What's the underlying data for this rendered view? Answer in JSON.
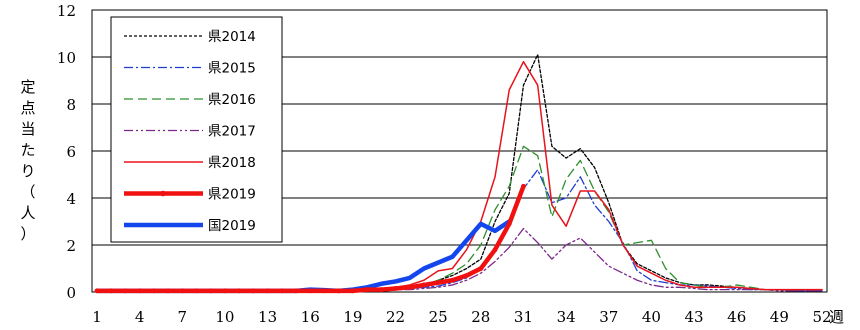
{
  "chart_data": {
    "type": "line",
    "ylabel": "定点当たり（人）",
    "xlabel": "",
    "x_unit": "週",
    "ylim": [
      0,
      12
    ],
    "yticks": [
      0,
      2,
      4,
      6,
      8,
      10,
      12
    ],
    "xticks": [
      1,
      4,
      7,
      10,
      13,
      16,
      19,
      22,
      25,
      28,
      31,
      34,
      37,
      40,
      43,
      46,
      49,
      52
    ],
    "xlim": [
      1,
      52
    ],
    "grid": "horizontal",
    "legend_position": "top-left",
    "series": [
      {
        "name": "県2014",
        "color": "#000000",
        "dash": "dotted",
        "width": 1.3,
        "x": [
          1,
          2,
          3,
          4,
          5,
          6,
          7,
          8,
          9,
          10,
          11,
          12,
          13,
          14,
          15,
          16,
          17,
          18,
          19,
          20,
          21,
          22,
          23,
          24,
          25,
          26,
          27,
          28,
          29,
          30,
          31,
          32,
          33,
          34,
          35,
          36,
          37,
          38,
          39,
          40,
          41,
          42,
          43,
          44,
          45,
          46,
          47,
          48,
          49,
          50,
          51,
          52
        ],
        "y": [
          0.05,
          0.05,
          0.05,
          0.05,
          0.05,
          0.05,
          0.05,
          0.05,
          0.05,
          0.05,
          0.05,
          0.05,
          0.05,
          0.05,
          0.05,
          0.05,
          0.05,
          0.05,
          0.05,
          0.1,
          0.1,
          0.15,
          0.2,
          0.3,
          0.5,
          0.7,
          1.0,
          1.4,
          3.0,
          4.2,
          8.8,
          10.1,
          6.2,
          5.7,
          6.1,
          5.3,
          3.8,
          2.0,
          1.2,
          0.9,
          0.6,
          0.4,
          0.3,
          0.3,
          0.25,
          0.2,
          0.15,
          0.1,
          0.1,
          0.1,
          0.1,
          0.1
        ]
      },
      {
        "name": "県2015",
        "color": "#1f3fd0",
        "dash": "dashdot",
        "width": 1.3,
        "x": [
          1,
          2,
          3,
          4,
          5,
          6,
          7,
          8,
          9,
          10,
          11,
          12,
          13,
          14,
          15,
          16,
          17,
          18,
          19,
          20,
          21,
          22,
          23,
          24,
          25,
          26,
          27,
          28,
          29,
          30,
          31,
          32,
          33,
          34,
          35,
          36,
          37,
          38,
          39,
          40,
          41,
          42,
          43,
          44,
          45,
          46,
          47,
          48,
          49,
          50,
          51,
          52
        ],
        "y": [
          0.05,
          0.05,
          0.05,
          0.05,
          0.05,
          0.05,
          0.05,
          0.05,
          0.05,
          0.05,
          0.05,
          0.05,
          0.05,
          0.05,
          0.05,
          0.05,
          0.05,
          0.05,
          0.05,
          0.05,
          0.05,
          0.1,
          0.15,
          0.2,
          0.25,
          0.4,
          0.6,
          1.0,
          1.8,
          3.0,
          4.4,
          5.2,
          3.8,
          4.0,
          4.9,
          3.7,
          3.0,
          2.1,
          0.9,
          0.5,
          0.4,
          0.3,
          0.3,
          0.25,
          0.2,
          0.15,
          0.1,
          0.1,
          0.1,
          0.05,
          0.05,
          0.05
        ]
      },
      {
        "name": "県2016",
        "color": "#2f8f2f",
        "dash": "dashed",
        "width": 1.3,
        "x": [
          1,
          2,
          3,
          4,
          5,
          6,
          7,
          8,
          9,
          10,
          11,
          12,
          13,
          14,
          15,
          16,
          17,
          18,
          19,
          20,
          21,
          22,
          23,
          24,
          25,
          26,
          27,
          28,
          29,
          30,
          31,
          32,
          33,
          34,
          35,
          36,
          37,
          38,
          39,
          40,
          41,
          42,
          43,
          44,
          45,
          46,
          47,
          48,
          49,
          50,
          51,
          52
        ],
        "y": [
          0.05,
          0.05,
          0.05,
          0.05,
          0.05,
          0.05,
          0.05,
          0.05,
          0.05,
          0.05,
          0.05,
          0.05,
          0.05,
          0.05,
          0.05,
          0.05,
          0.05,
          0.05,
          0.05,
          0.05,
          0.1,
          0.15,
          0.2,
          0.3,
          0.5,
          0.8,
          1.2,
          2.0,
          3.5,
          4.5,
          6.2,
          5.8,
          3.2,
          4.8,
          5.6,
          4.3,
          3.4,
          2.0,
          2.1,
          2.2,
          1.0,
          0.4,
          0.3,
          0.2,
          0.2,
          0.3,
          0.2,
          0.1,
          0.1,
          0.1,
          0.1,
          0.1
        ]
      },
      {
        "name": "県2017",
        "color": "#7a2a8a",
        "dash": "dashdotdot",
        "width": 1.3,
        "x": [
          1,
          2,
          3,
          4,
          5,
          6,
          7,
          8,
          9,
          10,
          11,
          12,
          13,
          14,
          15,
          16,
          17,
          18,
          19,
          20,
          21,
          22,
          23,
          24,
          25,
          26,
          27,
          28,
          29,
          30,
          31,
          32,
          33,
          34,
          35,
          36,
          37,
          38,
          39,
          40,
          41,
          42,
          43,
          44,
          45,
          46,
          47,
          48,
          49,
          50,
          51,
          52
        ],
        "y": [
          0.05,
          0.05,
          0.05,
          0.05,
          0.05,
          0.05,
          0.05,
          0.05,
          0.05,
          0.05,
          0.05,
          0.05,
          0.05,
          0.05,
          0.05,
          0.05,
          0.05,
          0.05,
          0.05,
          0.05,
          0.05,
          0.1,
          0.1,
          0.15,
          0.2,
          0.3,
          0.5,
          0.8,
          1.3,
          1.9,
          2.7,
          2.1,
          1.4,
          2.0,
          2.3,
          1.7,
          1.1,
          0.8,
          0.5,
          0.3,
          0.2,
          0.2,
          0.15,
          0.1,
          0.1,
          0.1,
          0.1,
          0.1,
          0.05,
          0.05,
          0.05,
          0.05
        ]
      },
      {
        "name": "県2018",
        "color": "#e8141c",
        "dash": "solid",
        "width": 1.5,
        "x": [
          1,
          2,
          3,
          4,
          5,
          6,
          7,
          8,
          9,
          10,
          11,
          12,
          13,
          14,
          15,
          16,
          17,
          18,
          19,
          20,
          21,
          22,
          23,
          24,
          25,
          26,
          27,
          28,
          29,
          30,
          31,
          32,
          33,
          34,
          35,
          36,
          37,
          38,
          39,
          40,
          41,
          42,
          43,
          44,
          45,
          46,
          47,
          48,
          49,
          50,
          51,
          52
        ],
        "y": [
          0.05,
          0.05,
          0.05,
          0.05,
          0.05,
          0.05,
          0.05,
          0.05,
          0.05,
          0.05,
          0.05,
          0.05,
          0.05,
          0.05,
          0.05,
          0.05,
          0.05,
          0.05,
          0.05,
          0.1,
          0.15,
          0.2,
          0.3,
          0.5,
          0.9,
          1.0,
          1.8,
          3.0,
          4.9,
          8.6,
          9.8,
          8.8,
          3.7,
          2.8,
          4.3,
          4.3,
          3.5,
          2.0,
          1.1,
          0.8,
          0.5,
          0.3,
          0.2,
          0.2,
          0.2,
          0.2,
          0.15,
          0.1,
          0.1,
          0.1,
          0.1,
          0.1
        ]
      },
      {
        "name": "県2019",
        "color": "#f01010",
        "dash": "solid",
        "width": 4.5,
        "markers": true,
        "x": [
          1,
          2,
          3,
          4,
          5,
          6,
          7,
          8,
          9,
          10,
          11,
          12,
          13,
          14,
          15,
          16,
          17,
          18,
          19,
          20,
          21,
          22,
          23,
          24,
          25,
          26,
          27,
          28,
          29,
          30,
          31
        ],
        "y": [
          0.05,
          0.05,
          0.05,
          0.05,
          0.05,
          0.05,
          0.05,
          0.05,
          0.05,
          0.05,
          0.05,
          0.05,
          0.05,
          0.05,
          0.05,
          0.05,
          0.05,
          0.05,
          0.05,
          0.1,
          0.1,
          0.15,
          0.2,
          0.3,
          0.4,
          0.5,
          0.7,
          1.0,
          1.8,
          2.9,
          4.5
        ]
      },
      {
        "name": "国2019",
        "color": "#1446ee",
        "dash": "solid",
        "width": 4.5,
        "x": [
          1,
          2,
          3,
          4,
          5,
          6,
          7,
          8,
          9,
          10,
          11,
          12,
          13,
          14,
          15,
          16,
          17,
          18,
          19,
          20,
          21,
          22,
          23,
          24,
          25,
          26,
          27,
          28,
          29,
          30
        ],
        "y": [
          0.05,
          0.05,
          0.05,
          0.05,
          0.05,
          0.05,
          0.05,
          0.05,
          0.05,
          0.05,
          0.05,
          0.05,
          0.05,
          0.05,
          0.05,
          0.1,
          0.08,
          0.05,
          0.1,
          0.2,
          0.35,
          0.45,
          0.6,
          1.0,
          1.25,
          1.5,
          2.2,
          2.9,
          2.6,
          3.0
        ]
      }
    ]
  }
}
